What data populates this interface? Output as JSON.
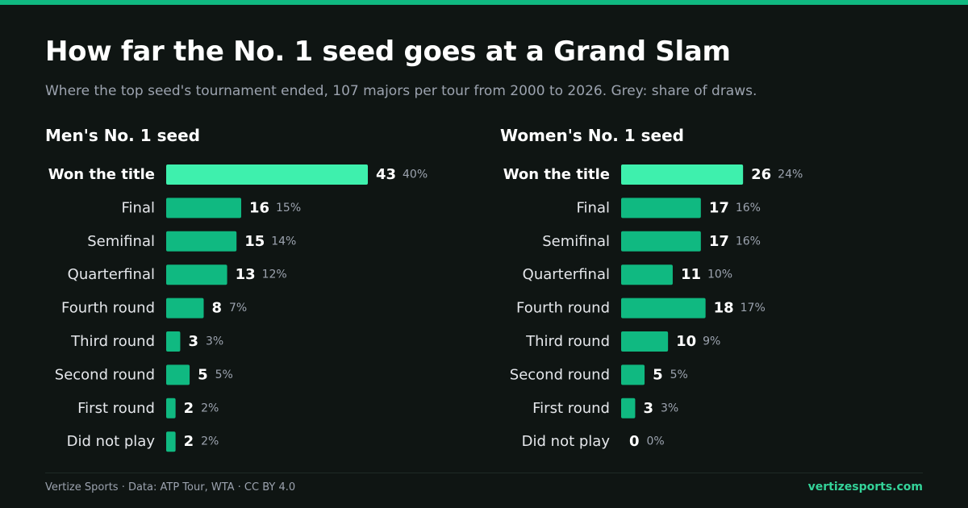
{
  "header": {
    "title": "How far the No. 1 seed goes at a Grand Slam",
    "subtitle": "Where the top seed's tournament ended, 107 majors per tour from 2000 to 2026. Grey: share of draws."
  },
  "footer": {
    "credit": "Vertize Sports · Data: ATP Tour, WTA · CC BY 4.0",
    "site": "vertizesports.com"
  },
  "colors": {
    "background": "#0f1513",
    "top_bar": "#10b981",
    "bar": "#10b981",
    "bar_highlight": "#3ef0ad",
    "value_text": "#ffffff",
    "percent_text": "#9ca3af",
    "label_text": "#e5e7eb"
  },
  "chart_data": [
    {
      "type": "bar",
      "orientation": "horizontal",
      "title": "Men's No. 1 seed",
      "categories": [
        "Won the title",
        "Final",
        "Semifinal",
        "Quarterfinal",
        "Fourth round",
        "Third round",
        "Second round",
        "First round",
        "Did not play"
      ],
      "values": [
        43,
        16,
        15,
        13,
        8,
        3,
        5,
        2,
        2
      ],
      "percent_labels": [
        "40%",
        "15%",
        "14%",
        "12%",
        "7%",
        "3%",
        "5%",
        "2%",
        "2%"
      ],
      "highlight": "Won the title",
      "xlim": [
        0,
        43
      ]
    },
    {
      "type": "bar",
      "orientation": "horizontal",
      "title": "Women's No. 1 seed",
      "categories": [
        "Won the title",
        "Final",
        "Semifinal",
        "Quarterfinal",
        "Fourth round",
        "Third round",
        "Second round",
        "First round",
        "Did not play"
      ],
      "values": [
        26,
        17,
        17,
        11,
        18,
        10,
        5,
        3,
        0
      ],
      "percent_labels": [
        "24%",
        "16%",
        "16%",
        "10%",
        "17%",
        "9%",
        "5%",
        "3%",
        "0%"
      ],
      "highlight": "Won the title",
      "xlim": [
        0,
        43
      ]
    }
  ]
}
